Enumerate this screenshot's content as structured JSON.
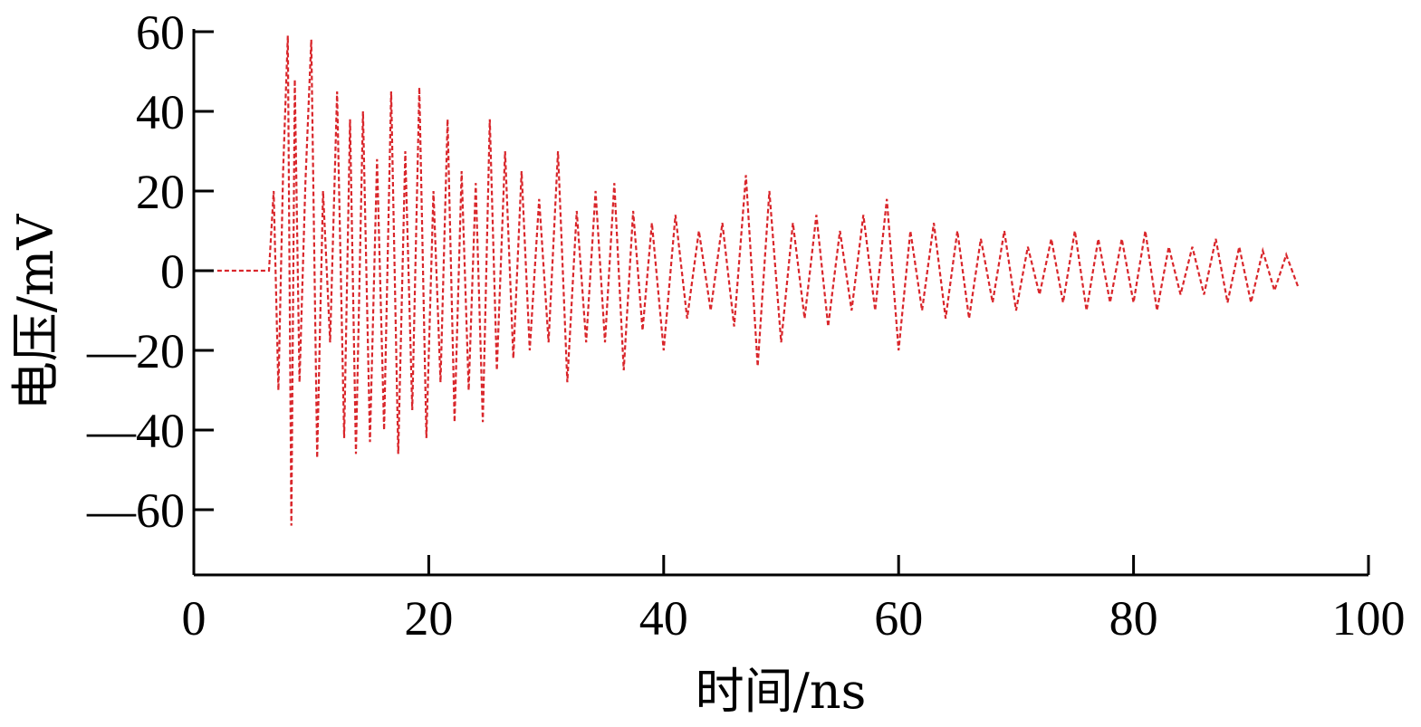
{
  "chart_data": {
    "type": "line",
    "title": "",
    "xlabel": "时间/ns",
    "ylabel": "电压/mV",
    "xlim": [
      0,
      100
    ],
    "ylim": [
      -70,
      60
    ],
    "xticks": [
      0,
      20,
      40,
      60,
      80,
      100
    ],
    "xtick_labels": [
      "0",
      "20",
      "40",
      "60",
      "80",
      "100"
    ],
    "yticks": [
      60,
      40,
      20,
      0,
      -20,
      -40,
      -60
    ],
    "ytick_labels": [
      "60",
      "40",
      "20",
      "0",
      "—20",
      "—40",
      "—60"
    ],
    "grid": false,
    "legend": "none",
    "line_color": "#d9262b",
    "line_style": "dashed",
    "series": [
      {
        "x": [
          2.0,
          6.4,
          6.8,
          7.2,
          7.6,
          8.0,
          8.3,
          8.6,
          9.0,
          9.5,
          10.0,
          10.5,
          11.0,
          11.6,
          12.2,
          12.8,
          13.3,
          13.8,
          14.4,
          15.0,
          15.6,
          16.2,
          16.8,
          17.4,
          18.0,
          18.6,
          19.2,
          19.8,
          20.4,
          21.0,
          21.6,
          22.2,
          22.8,
          23.4,
          24.0,
          24.6,
          25.2,
          25.8,
          26.5,
          27.2,
          27.9,
          28.6,
          29.4,
          30.2,
          31.0,
          31.8,
          32.6,
          33.4,
          34.2,
          35.0,
          35.8,
          36.6,
          37.4,
          38.2,
          39.0,
          40.0,
          41.0,
          42.0,
          43.0,
          44.0,
          45.0,
          46.0,
          47.0,
          48.0,
          49.0,
          50.0,
          51.0,
          52.0,
          53.0,
          54.0,
          55.0,
          56.0,
          57.0,
          58.0,
          59.0,
          60.0,
          61.0,
          62.0,
          63.0,
          64.0,
          65.0,
          66.0,
          67.0,
          68.0,
          69.0,
          70.0,
          71.0,
          72.0,
          73.0,
          74.0,
          75.0,
          76.0,
          77.0,
          78.0,
          79.0,
          80.0,
          81.0,
          82.0,
          83.0,
          84.0,
          85.0,
          86.0,
          87.0,
          88.0,
          89.0,
          90.0,
          91.0,
          92.0,
          93.0,
          94.0
        ],
        "y": [
          0,
          0,
          20,
          -30,
          25,
          59,
          -64,
          48,
          -28,
          22,
          58,
          -47,
          20,
          -18,
          45,
          -42,
          38,
          -46,
          40,
          -43,
          28,
          -40,
          45,
          -46,
          30,
          -35,
          46,
          -42,
          20,
          -28,
          38,
          -38,
          25,
          -30,
          22,
          -38,
          38,
          -25,
          30,
          -22,
          25,
          -20,
          18,
          -18,
          30,
          -28,
          15,
          -18,
          20,
          -18,
          22,
          -25,
          15,
          -15,
          12,
          -20,
          14,
          -12,
          10,
          -10,
          12,
          -14,
          24,
          -24,
          20,
          -18,
          12,
          -12,
          14,
          -14,
          10,
          -10,
          14,
          -10,
          18,
          -20,
          10,
          -10,
          12,
          -12,
          10,
          -12,
          8,
          -8,
          10,
          -10,
          6,
          -6,
          8,
          -8,
          10,
          -10,
          8,
          -8,
          8,
          -8,
          10,
          -10,
          6,
          -6,
          6,
          -6,
          8,
          -8,
          6,
          -8,
          5,
          -5,
          4,
          -4
        ]
      }
    ]
  }
}
